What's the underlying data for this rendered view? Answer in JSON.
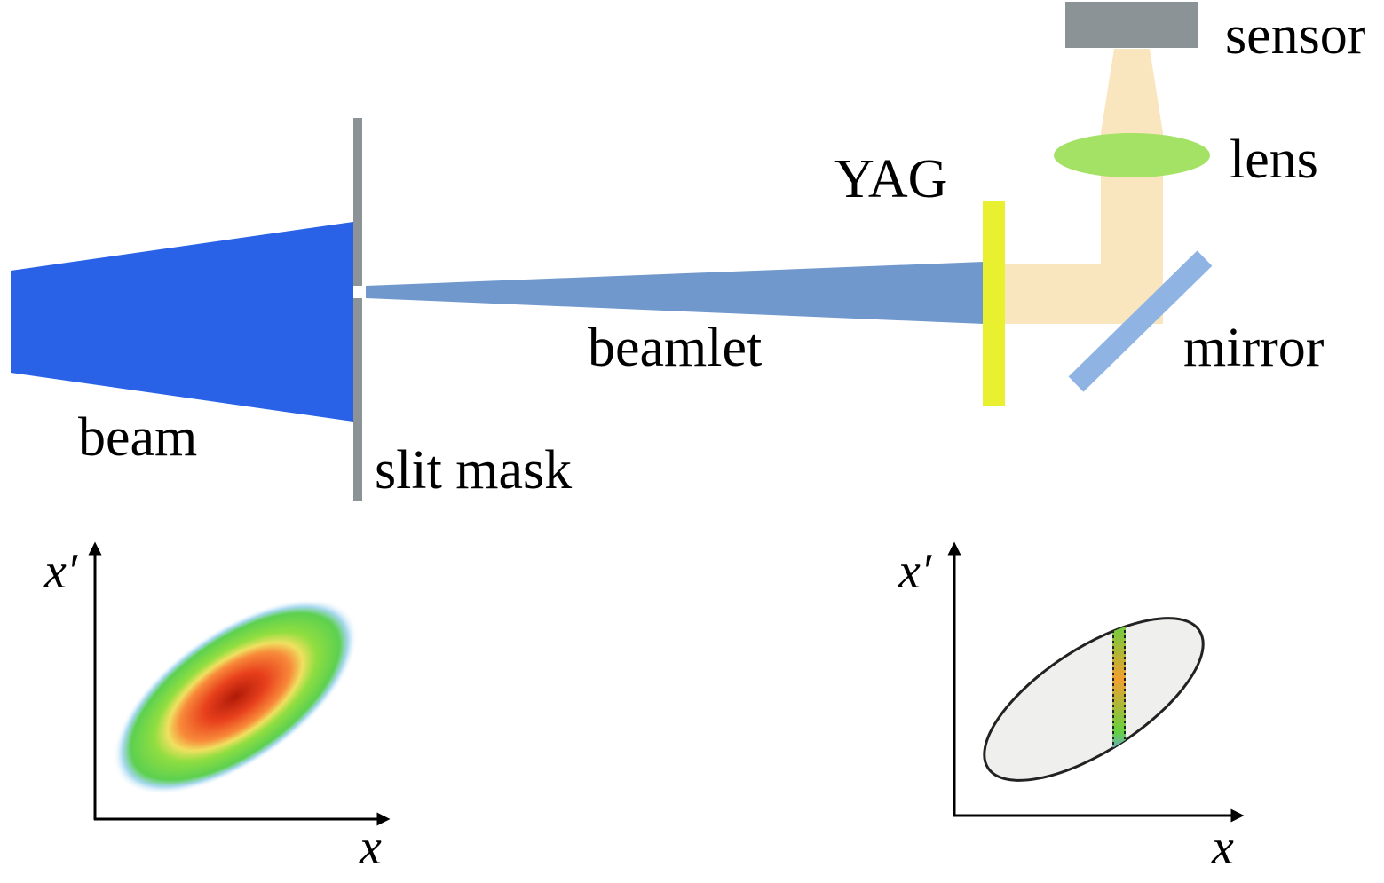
{
  "labels": {
    "sensor": "sensor",
    "lens": "lens",
    "yag": "YAG",
    "beamlet": "beamlet",
    "mirror": "mirror",
    "beam": "beam",
    "slit_mask": "slit mask"
  },
  "phase_space_left": {
    "y_axis": "x′",
    "x_axis": "x"
  },
  "phase_space_right": {
    "y_axis": "x′",
    "x_axis": "x"
  },
  "colors": {
    "beam": "#2962e6",
    "beamlet": "#7098cc",
    "slit_mask": "#8c9396",
    "yag": "#e8f030",
    "light": "#fae6be",
    "lens": "#a3e264",
    "mirror": "#8fb4e3",
    "sensor": "#8c9396"
  }
}
